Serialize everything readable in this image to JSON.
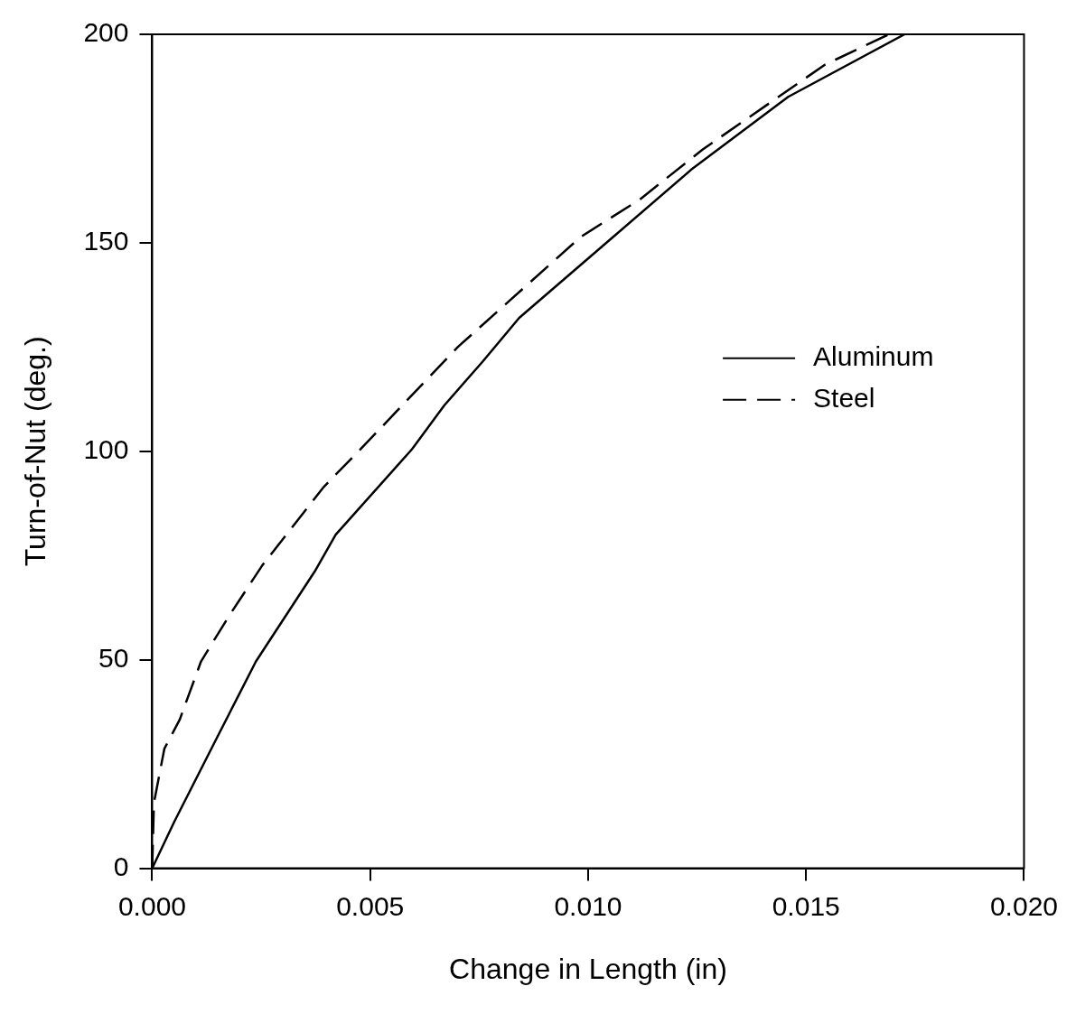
{
  "chart_data": {
    "type": "line",
    "xlabel": "Change in Length (in)",
    "ylabel": "Turn-of-Nut (deg.)",
    "xlim": [
      0,
      0.02
    ],
    "ylim": [
      0,
      200
    ],
    "xticks": [
      {
        "value": 0,
        "label": "0.000"
      },
      {
        "value": 0.005,
        "label": "0.005"
      },
      {
        "value": 0.01,
        "label": "0.010"
      },
      {
        "value": 0.015,
        "label": "0.015"
      },
      {
        "value": 0.02,
        "label": "0.020"
      }
    ],
    "yticks": [
      0,
      50,
      100,
      150,
      200
    ],
    "grid": false,
    "legend": "right",
    "marker": "none",
    "series": [
      {
        "name": "Aluminum",
        "color": "#000000",
        "line_style": "solid",
        "x": [
          0,
          0.0005,
          0.00147,
          0.00238,
          0.00373,
          0.00421,
          0.00596,
          0.0067,
          0.00758,
          0.00842,
          0.01053,
          0.01236,
          0.01459,
          0.01726
        ],
        "values": [
          0,
          11,
          31,
          49.6,
          71.2,
          80,
          100.5,
          111,
          121.5,
          132,
          151,
          167.5,
          185,
          200
        ]
      },
      {
        "name": "Steel",
        "color": "#000000",
        "line_style": "dashed",
        "x": [
          0,
          4e-05,
          0.00028,
          0.00063,
          0.00112,
          0.00175,
          0.00253,
          0.00394,
          0.00478,
          0.00701,
          0.00983,
          0.0112,
          0.01263,
          0.01543,
          0.0169
        ],
        "values": [
          0,
          15.7,
          28.7,
          35.6,
          49.6,
          60.3,
          72.7,
          91.5,
          100.5,
          125,
          151.4,
          160.5,
          172.4,
          192.7,
          200
        ]
      }
    ]
  }
}
